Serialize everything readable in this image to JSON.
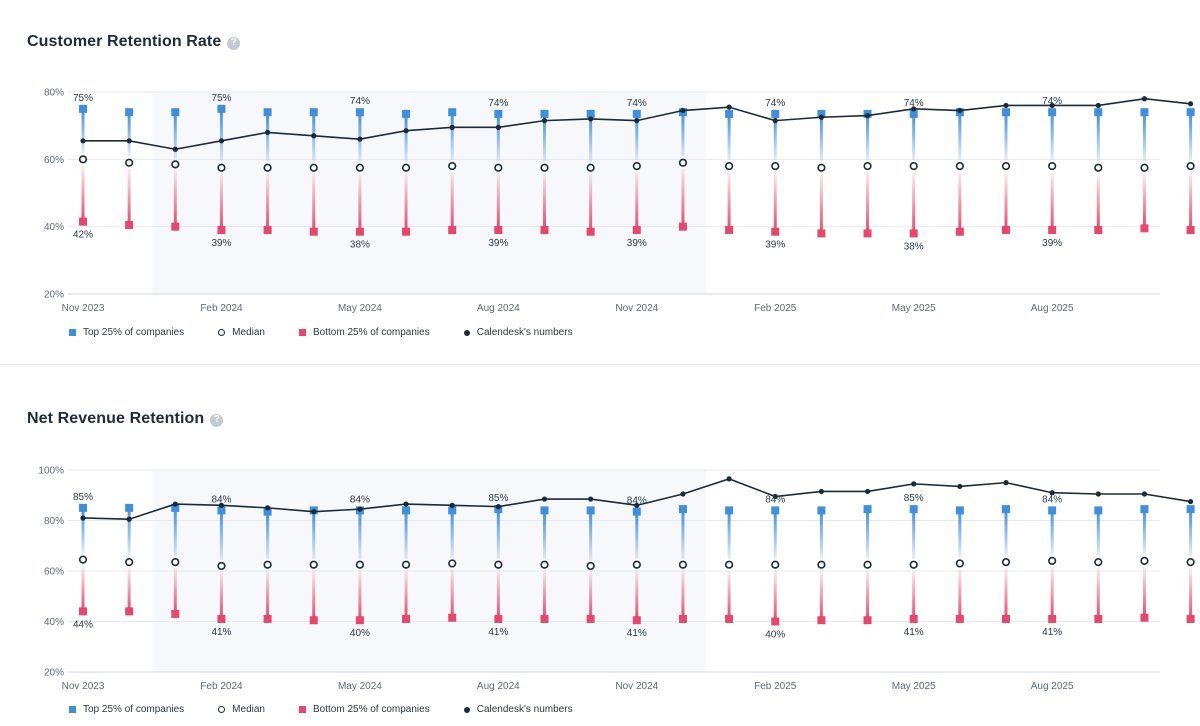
{
  "chart_data": [
    {
      "type": "line",
      "title": "Customer Retention Rate",
      "ylim": [
        20,
        80
      ],
      "yticks": [
        "20%",
        "40%",
        "60%",
        "80%"
      ],
      "x_tick_labels": [
        {
          "label": "Nov 2023",
          "index": 0
        },
        {
          "label": "Feb 2024",
          "index": 3
        },
        {
          "label": "May 2024",
          "index": 6
        },
        {
          "label": "Aug 2024",
          "index": 9
        },
        {
          "label": "Nov 2024",
          "index": 12
        },
        {
          "label": "Feb 2025",
          "index": 15
        },
        {
          "label": "May 2025",
          "index": 18
        },
        {
          "label": "Aug 2025",
          "index": 21
        }
      ],
      "highlight_range": [
        1.5,
        13.5
      ],
      "grid": true,
      "legend_position": "bottom-left",
      "series": [
        {
          "name": "Top 25% of companies",
          "color": "#3f8fdc",
          "marker": "square",
          "values": [
            75,
            74,
            74,
            75,
            74,
            74,
            74,
            73.5,
            74,
            73.5,
            73.5,
            73.5,
            73.5,
            74,
            73.5,
            73.5,
            73.5,
            73.5,
            73.5,
            74,
            74,
            74,
            74,
            74,
            74
          ]
        },
        {
          "name": "Median",
          "color": "#1b2a3a",
          "marker": "circle",
          "values": [
            60,
            59,
            58.5,
            57.5,
            57.5,
            57.5,
            57.5,
            57.5,
            58,
            57.5,
            57.5,
            57.5,
            58,
            59,
            58,
            58,
            57.5,
            58,
            58,
            58,
            58,
            58,
            57.5,
            57.5,
            58
          ]
        },
        {
          "name": "Bottom 25% of companies",
          "color": "#e5486a",
          "marker": "square",
          "values": [
            41.5,
            40.5,
            40,
            39,
            39,
            38.5,
            38.5,
            38.5,
            39,
            39,
            39,
            38.5,
            39,
            40,
            39,
            38.5,
            38,
            38,
            38,
            38.5,
            39,
            39,
            39,
            39.5,
            39
          ]
        },
        {
          "name": "Calendesk's numbers",
          "color": "#1b2a3a",
          "marker": "dot",
          "values": [
            65.5,
            65.5,
            63,
            65.5,
            68,
            67,
            66,
            68.5,
            69.5,
            69.5,
            71.5,
            72,
            71.5,
            74.5,
            75.5,
            71.5,
            72.5,
            73,
            75,
            74.5,
            76,
            76,
            76,
            78,
            76.5
          ]
        }
      ],
      "data_labels": [
        {
          "text": "75%",
          "index": 0,
          "series": "top"
        },
        {
          "text": "42%",
          "index": 0,
          "series": "bottom"
        },
        {
          "text": "75%",
          "index": 3,
          "series": "top"
        },
        {
          "text": "39%",
          "index": 3,
          "series": "bottom"
        },
        {
          "text": "74%",
          "index": 6,
          "series": "top"
        },
        {
          "text": "38%",
          "index": 6,
          "series": "bottom"
        },
        {
          "text": "74%",
          "index": 9,
          "series": "top"
        },
        {
          "text": "39%",
          "index": 9,
          "series": "bottom"
        },
        {
          "text": "74%",
          "index": 12,
          "series": "top"
        },
        {
          "text": "39%",
          "index": 12,
          "series": "bottom"
        },
        {
          "text": "74%",
          "index": 15,
          "series": "top"
        },
        {
          "text": "39%",
          "index": 15,
          "series": "bottom"
        },
        {
          "text": "74%",
          "index": 18,
          "series": "top"
        },
        {
          "text": "38%",
          "index": 18,
          "series": "bottom"
        },
        {
          "text": "74%",
          "index": 21,
          "series": "top"
        },
        {
          "text": "39%",
          "index": 21,
          "series": "bottom"
        }
      ]
    },
    {
      "type": "line",
      "title": "Net Revenue Retention",
      "ylim": [
        20,
        100
      ],
      "yticks": [
        "20%",
        "40%",
        "60%",
        "80%",
        "100%"
      ],
      "x_tick_labels": [
        {
          "label": "Nov 2023",
          "index": 0
        },
        {
          "label": "Feb 2024",
          "index": 3
        },
        {
          "label": "May 2024",
          "index": 6
        },
        {
          "label": "Aug 2024",
          "index": 9
        },
        {
          "label": "Nov 2024",
          "index": 12
        },
        {
          "label": "Feb 2025",
          "index": 15
        },
        {
          "label": "May 2025",
          "index": 18
        },
        {
          "label": "Aug 2025",
          "index": 21
        }
      ],
      "highlight_range": [
        1.5,
        13.5
      ],
      "grid": true,
      "legend_position": "bottom-left",
      "series": [
        {
          "name": "Top 25% of companies",
          "color": "#3f8fdc",
          "marker": "square",
          "values": [
            85,
            85,
            85,
            84,
            83.5,
            84,
            84,
            84,
            84,
            84.5,
            84,
            84,
            83.5,
            84.5,
            84,
            84,
            84,
            84.5,
            84.5,
            84,
            84.5,
            84,
            84,
            84.5,
            84.5
          ]
        },
        {
          "name": "Median",
          "color": "#1b2a3a",
          "marker": "circle",
          "values": [
            64.5,
            63.5,
            63.5,
            62,
            62.5,
            62.5,
            62.5,
            62.5,
            63,
            62.5,
            62.5,
            62,
            62.5,
            62.5,
            62.5,
            62.5,
            62.5,
            62.5,
            62.5,
            63,
            63.5,
            64,
            63.5,
            64,
            63.5
          ]
        },
        {
          "name": "Bottom 25% of companies",
          "color": "#e5486a",
          "marker": "square",
          "values": [
            44,
            44,
            43,
            41,
            41,
            40.5,
            40.5,
            41,
            41.5,
            41,
            41,
            41,
            40.5,
            41,
            41,
            40,
            40.5,
            40.5,
            41,
            41,
            41,
            41,
            41,
            41.5,
            41
          ]
        },
        {
          "name": "Calendesk's numbers",
          "color": "#1b2a3a",
          "marker": "dot",
          "values": [
            81,
            80.5,
            86.5,
            86,
            85,
            83.5,
            84.5,
            86.5,
            86,
            85.5,
            88.5,
            88.5,
            86,
            90.5,
            96.5,
            89.5,
            91.5,
            91.5,
            94.5,
            93.5,
            95,
            91,
            90.5,
            90.5,
            87.5
          ]
        }
      ],
      "data_labels": [
        {
          "text": "85%",
          "index": 0,
          "series": "top"
        },
        {
          "text": "44%",
          "index": 0,
          "series": "bottom"
        },
        {
          "text": "84%",
          "index": 3,
          "series": "top"
        },
        {
          "text": "41%",
          "index": 3,
          "series": "bottom"
        },
        {
          "text": "84%",
          "index": 6,
          "series": "top"
        },
        {
          "text": "40%",
          "index": 6,
          "series": "bottom"
        },
        {
          "text": "85%",
          "index": 9,
          "series": "top"
        },
        {
          "text": "41%",
          "index": 9,
          "series": "bottom"
        },
        {
          "text": "84%",
          "index": 12,
          "series": "top"
        },
        {
          "text": "41%",
          "index": 12,
          "series": "bottom"
        },
        {
          "text": "84%",
          "index": 15,
          "series": "top"
        },
        {
          "text": "40%",
          "index": 15,
          "series": "bottom"
        },
        {
          "text": "85%",
          "index": 18,
          "series": "top"
        },
        {
          "text": "41%",
          "index": 18,
          "series": "bottom"
        },
        {
          "text": "84%",
          "index": 21,
          "series": "top"
        },
        {
          "text": "41%",
          "index": 21,
          "series": "bottom"
        }
      ]
    }
  ],
  "help_icon_glyph": "?",
  "legend": {
    "top": "Top 25% of companies",
    "median": "Median",
    "bottom": "Bottom 25% of companies",
    "calendesk": "Calendesk's numbers"
  },
  "colors": {
    "top": "#3f8fdc",
    "bottom": "#e5486a",
    "line": "#1b2a3a",
    "grid": "#e6eaef",
    "highlight": "#f6f8fc"
  }
}
